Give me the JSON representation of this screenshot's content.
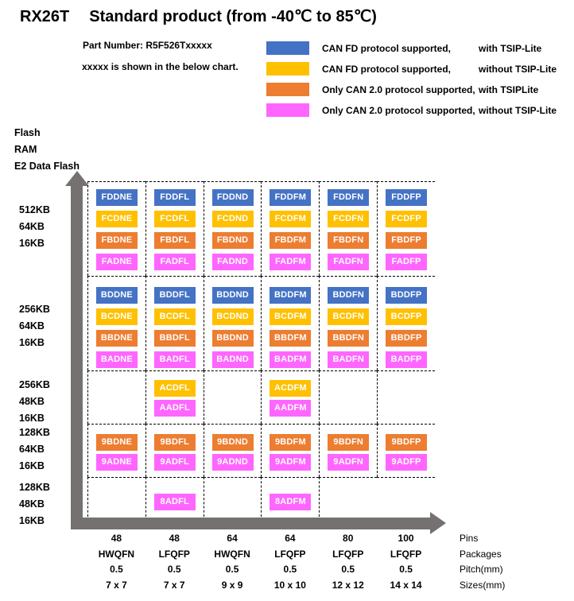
{
  "title": {
    "brand": "RX26T",
    "text": "Standard product (from -40℃ to 85℃)"
  },
  "subtitle": {
    "line1": "Part Number: R5F526Txxxxx",
    "line2": "xxxxx is shown in the below chart."
  },
  "legend": [
    {
      "key": "canfd_tsip",
      "color": "#4472C4",
      "label": "CAN FD protocol supported,",
      "suffix": "with TSIP-Lite"
    },
    {
      "key": "canfd",
      "color": "#FFC000",
      "label": "CAN FD protocol supported,",
      "suffix": "without TSIP-Lite"
    },
    {
      "key": "can20_tsip",
      "color": "#ED7D31",
      "label": "Only CAN 2.0 protocol supported,",
      "suffix": "with TSIPLite"
    },
    {
      "key": "can20",
      "color": "#FF66FF",
      "label": "Only CAN 2.0 protocol supported,",
      "suffix": "without TSIP-Lite"
    }
  ],
  "y_axis": {
    "title_lines": [
      "Flash",
      "RAM",
      "E2 Data Flash"
    ]
  },
  "x_axis": {
    "rows": [
      {
        "label": "Pins",
        "values": [
          "48",
          "48",
          "64",
          "64",
          "80",
          "100"
        ]
      },
      {
        "label": "Packages",
        "values": [
          "HWQFN",
          "LFQFP",
          "HWQFN",
          "LFQFP",
          "LFQFP",
          "LFQFP"
        ]
      },
      {
        "label": "Pitch(mm)",
        "values": [
          "0.5",
          "0.5",
          "0.5",
          "0.5",
          "0.5",
          "0.5"
        ]
      },
      {
        "label": "Sizes(mm)",
        "values": [
          "7 x 7",
          "7 x 7",
          "9 x 9",
          "10 x 10",
          "12 x 12",
          "14 x 14"
        ]
      }
    ]
  },
  "chart_data": {
    "type": "table",
    "groups": [
      {
        "memory": [
          "512KB",
          "64KB",
          "16KB"
        ],
        "row_categories": [
          "canfd_tsip",
          "canfd",
          "can20_tsip",
          "can20"
        ],
        "columns": [
          [
            "FDDNE",
            "FCDNE",
            "FBDNE",
            "FADNE"
          ],
          [
            "FDDFL",
            "FCDFL",
            "FBDFL",
            "FADFL"
          ],
          [
            "FDDND",
            "FCDND",
            "FBDND",
            "FADND"
          ],
          [
            "FDDFM",
            "FCDFM",
            "FBDFM",
            "FADFM"
          ],
          [
            "FDDFN",
            "FCDFN",
            "FBDFN",
            "FADFN"
          ],
          [
            "FDDFP",
            "FCDFP",
            "FBDFP",
            "FADFP"
          ]
        ]
      },
      {
        "memory": [
          "256KB",
          "64KB",
          "16KB"
        ],
        "row_categories": [
          "canfd_tsip",
          "canfd",
          "can20_tsip",
          "can20"
        ],
        "columns": [
          [
            "BDDNE",
            "BCDNE",
            "BBDNE",
            "BADNE"
          ],
          [
            "BDDFL",
            "BCDFL",
            "BBDFL",
            "BADFL"
          ],
          [
            "BDDND",
            "BCDND",
            "BBDND",
            "BADND"
          ],
          [
            "BDDFM",
            "BCDFM",
            "BBDFM",
            "BADFM"
          ],
          [
            "BDDFN",
            "BCDFN",
            "BBDFN",
            "BADFN"
          ],
          [
            "BDDFP",
            "BCDFP",
            "BBDFP",
            "BADFP"
          ]
        ]
      },
      {
        "memory": [
          "256KB",
          "48KB",
          "16KB"
        ],
        "row_categories": [
          "canfd",
          "can20"
        ],
        "columns": [
          [],
          [
            "ACDFL",
            "AADFL"
          ],
          [],
          [
            "ACDFM",
            "AADFM"
          ],
          [],
          []
        ]
      },
      {
        "memory": [
          "128KB",
          "64KB",
          "16KB"
        ],
        "row_categories": [
          "can20_tsip",
          "can20"
        ],
        "columns": [
          [
            "9BDNE",
            "9ADNE"
          ],
          [
            "9BDFL",
            "9ADFL"
          ],
          [
            "9BDND",
            "9ADND"
          ],
          [
            "9BDFM",
            "9ADFM"
          ],
          [
            "9BDFN",
            "9ADFN"
          ],
          [
            "9BDFP",
            "9ADFP"
          ]
        ]
      },
      {
        "memory": [
          "128KB",
          "48KB",
          "16KB"
        ],
        "row_categories": [
          "can20"
        ],
        "columns": [
          [],
          [
            "8ADFL"
          ],
          [],
          [
            "8ADFM"
          ],
          [],
          []
        ]
      }
    ]
  },
  "colors": {
    "arrow": "#767171",
    "grid_line": "#000000"
  }
}
